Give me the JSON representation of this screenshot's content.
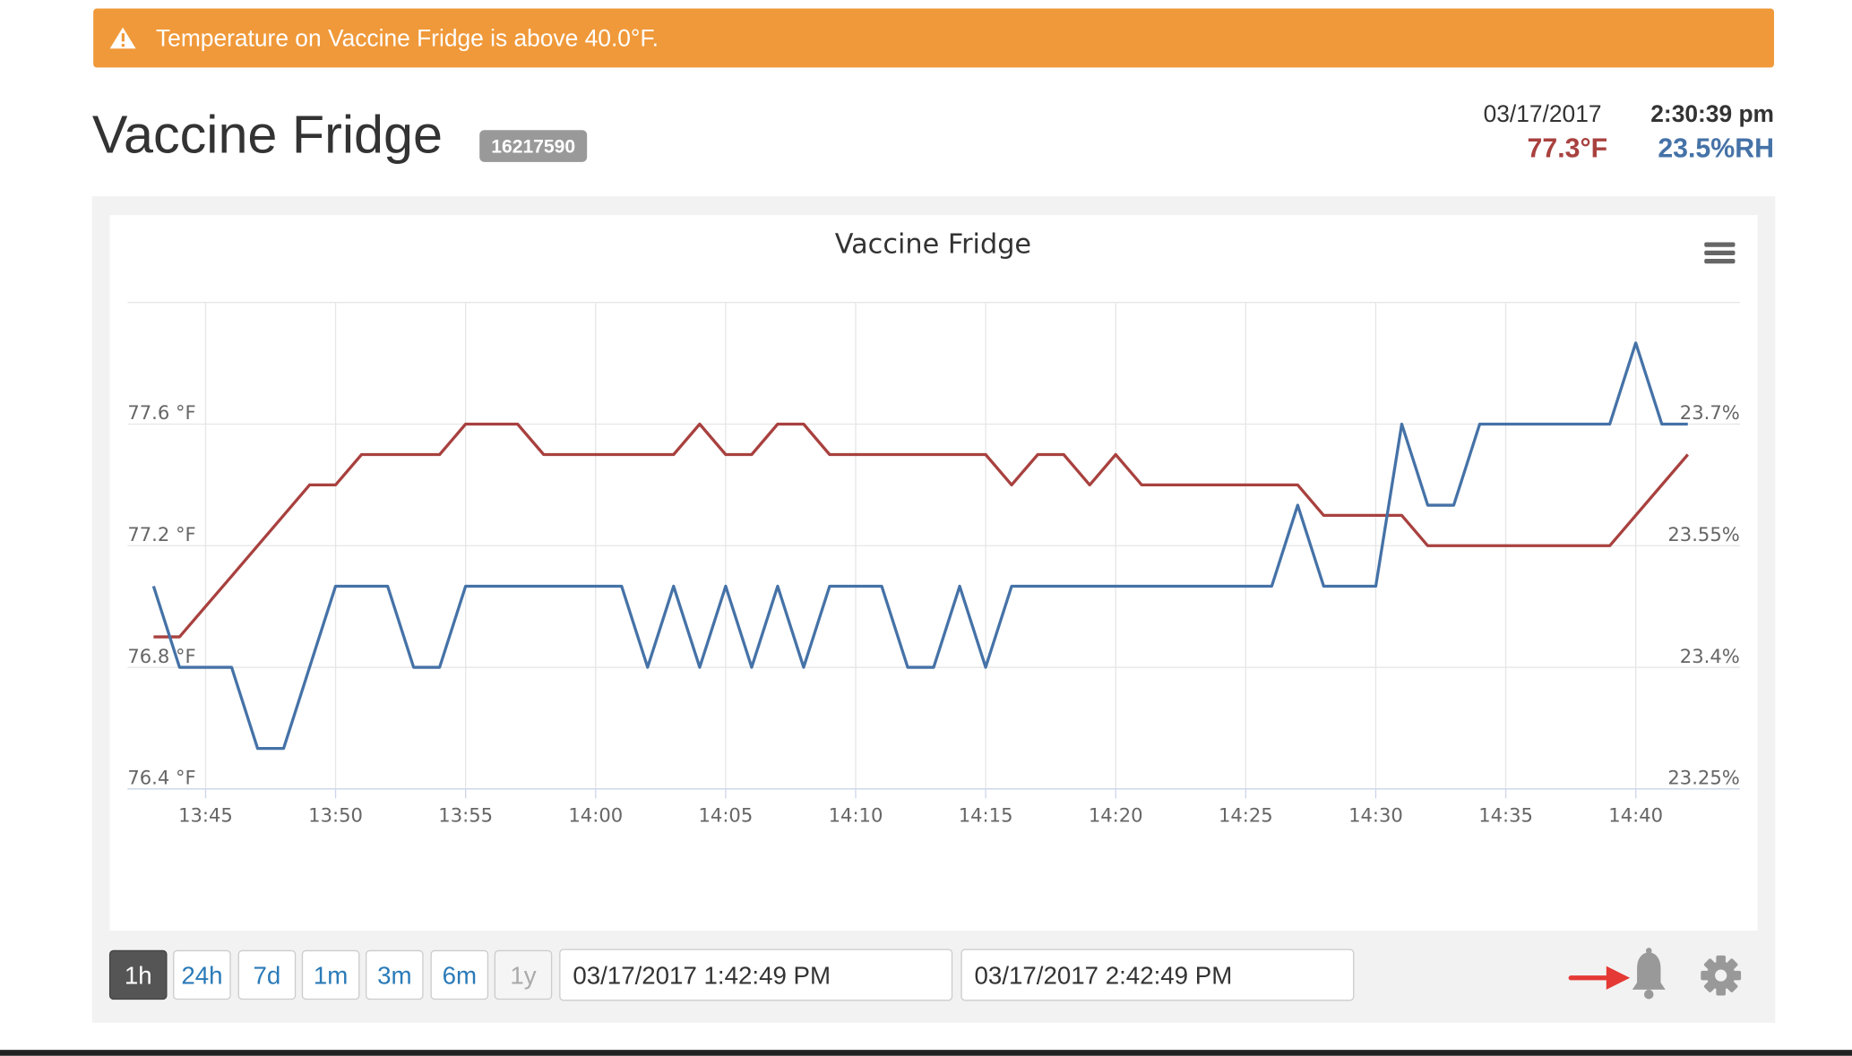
{
  "alert": {
    "text": "Temperature on Vaccine Fridge is above 40.0°F."
  },
  "header": {
    "title": "Vaccine Fridge",
    "serial": "16217590",
    "date": "03/17/2017",
    "time": "2:30:39 pm",
    "temperature": "77.3°F",
    "humidity": "23.5%RH"
  },
  "chart_data": {
    "type": "line",
    "title": "Vaccine Fridge",
    "x": [
      "13:43",
      "13:44",
      "13:45",
      "13:46",
      "13:47",
      "13:48",
      "13:49",
      "13:50",
      "13:51",
      "13:52",
      "13:53",
      "13:54",
      "13:55",
      "13:56",
      "13:57",
      "13:58",
      "13:59",
      "14:00",
      "14:01",
      "14:02",
      "14:03",
      "14:04",
      "14:05",
      "14:06",
      "14:07",
      "14:08",
      "14:09",
      "14:10",
      "14:11",
      "14:12",
      "14:13",
      "14:14",
      "14:15",
      "14:16",
      "14:17",
      "14:18",
      "14:19",
      "14:20",
      "14:21",
      "14:22",
      "14:23",
      "14:24",
      "14:25",
      "14:26",
      "14:27",
      "14:28",
      "14:29",
      "14:30",
      "14:31",
      "14:32",
      "14:33",
      "14:34",
      "14:35",
      "14:36",
      "14:37",
      "14:38",
      "14:39",
      "14:40",
      "14:41",
      "14:42"
    ],
    "series": [
      {
        "color": "#a8413f",
        "values": [
          76.9,
          76.9,
          77.0,
          77.1,
          77.2,
          77.3,
          77.4,
          77.4,
          77.5,
          77.5,
          77.5,
          77.5,
          77.6,
          77.6,
          77.6,
          77.5,
          77.5,
          77.5,
          77.5,
          77.5,
          77.5,
          77.6,
          77.5,
          77.5,
          77.6,
          77.6,
          77.5,
          77.5,
          77.5,
          77.5,
          77.5,
          77.5,
          77.5,
          77.4,
          77.5,
          77.5,
          77.4,
          77.5,
          77.4,
          77.4,
          77.4,
          77.4,
          77.4,
          77.4,
          77.4,
          77.3,
          77.3,
          77.3,
          77.3,
          77.2,
          77.2,
          77.2,
          77.2,
          77.2,
          77.2,
          77.2,
          77.2,
          77.3,
          77.4,
          77.5
        ]
      },
      {
        "color": "#4572a7",
        "axis": "y2",
        "values": [
          23.5,
          23.4,
          23.4,
          23.4,
          23.3,
          23.3,
          23.4,
          23.5,
          23.5,
          23.5,
          23.4,
          23.4,
          23.5,
          23.5,
          23.5,
          23.5,
          23.5,
          23.5,
          23.5,
          23.4,
          23.5,
          23.4,
          23.5,
          23.4,
          23.5,
          23.4,
          23.5,
          23.5,
          23.5,
          23.4,
          23.4,
          23.5,
          23.4,
          23.5,
          23.5,
          23.5,
          23.5,
          23.5,
          23.5,
          23.5,
          23.5,
          23.5,
          23.5,
          23.5,
          23.6,
          23.5,
          23.5,
          23.5,
          23.7,
          23.6,
          23.6,
          23.7,
          23.7,
          23.7,
          23.7,
          23.7,
          23.7,
          23.8,
          23.7,
          23.7
        ]
      }
    ],
    "xlim": [
      "13:42",
      "14:44"
    ],
    "xticks": [
      "13:45",
      "13:50",
      "13:55",
      "14:00",
      "14:05",
      "14:10",
      "14:15",
      "14:20",
      "14:25",
      "14:30",
      "14:35",
      "14:40"
    ],
    "ylim": [
      76.4,
      78.0
    ],
    "yticks": [
      {
        "value": 76.4,
        "label": "76.4 °F"
      },
      {
        "value": 76.8,
        "label": "76.8 °F"
      },
      {
        "value": 77.2,
        "label": "77.2 °F"
      },
      {
        "value": 77.6,
        "label": "77.6 °F"
      }
    ],
    "y2lim": [
      23.25,
      23.85
    ],
    "y2ticks": [
      {
        "value": 23.25,
        "label": "23.25%"
      },
      {
        "value": 23.4,
        "label": "23.4%"
      },
      {
        "value": 23.55,
        "label": "23.55%"
      },
      {
        "value": 23.7,
        "label": "23.7%"
      }
    ],
    "grid": true
  },
  "controls": {
    "ranges": [
      {
        "label": "1h",
        "active": true
      },
      {
        "label": "24h"
      },
      {
        "label": "7d"
      },
      {
        "label": "1m"
      },
      {
        "label": "3m"
      },
      {
        "label": "6m"
      },
      {
        "label": "1y",
        "disabled": true
      }
    ],
    "start": "03/17/2017 1:42:49 PM",
    "end": "03/17/2017 2:42:49 PM"
  }
}
